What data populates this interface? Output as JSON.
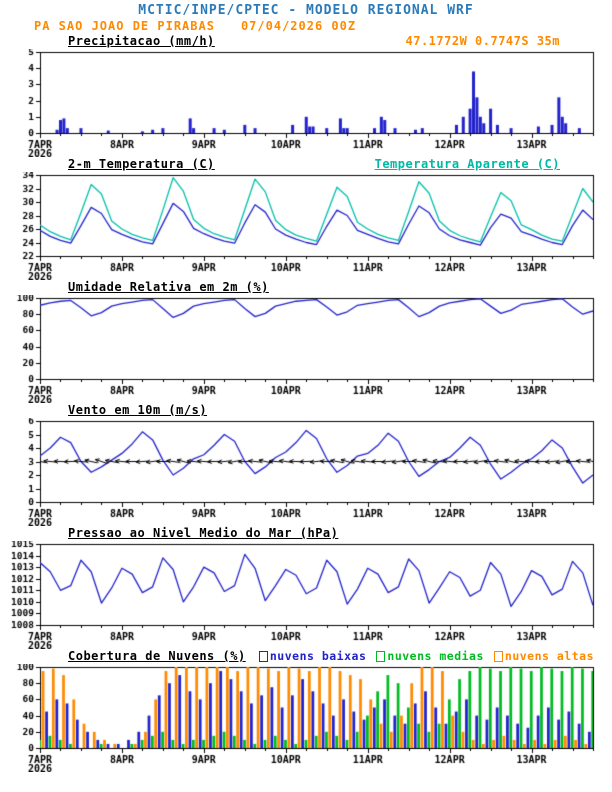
{
  "header": {
    "title": "MCTIC/INPE/CPTEC - MODELO REGIONAL WRF",
    "station": "PA SAO JOAO DE PIRABAS",
    "run": "07/04/2026 00Z"
  },
  "colors": {
    "title_blue": "#2b7bba",
    "accent_orange": "#ff8a00",
    "line_blue": "#2222cc",
    "line_cyan": "#00c0a8",
    "green": "#00bb22",
    "axis_black": "#000000"
  },
  "x_axis": {
    "hour_min": 0,
    "hour_max": 162,
    "step": 3,
    "tick_hours": [
      0,
      24,
      48,
      72,
      96,
      120,
      144
    ],
    "tick_labels": [
      "7APR",
      "8APR",
      "9APR",
      "10APR",
      "11APR",
      "12APR",
      "13APR"
    ],
    "year_label": "2026"
  },
  "chart_data": [
    {
      "type": "bar",
      "title": "Precipitacao (mm/h)",
      "right_label": "47.1772W 0.7747S 35m",
      "ylim": [
        0,
        5
      ],
      "ytick_step": 1,
      "bar_color": "#2222cc",
      "bars": [
        [
          5,
          0.2
        ],
        [
          6,
          0.8
        ],
        [
          7,
          0.9
        ],
        [
          8,
          0.3
        ],
        [
          12,
          0.3
        ],
        [
          20,
          0.15
        ],
        [
          30,
          0.1
        ],
        [
          33,
          0.2
        ],
        [
          36,
          0.3
        ],
        [
          44,
          0.9
        ],
        [
          45,
          0.3
        ],
        [
          51,
          0.3
        ],
        [
          54,
          0.2
        ],
        [
          60,
          0.5
        ],
        [
          63,
          0.3
        ],
        [
          74,
          0.5
        ],
        [
          78,
          1.0
        ],
        [
          79,
          0.4
        ],
        [
          80,
          0.4
        ],
        [
          84,
          0.3
        ],
        [
          88,
          0.9
        ],
        [
          89,
          0.3
        ],
        [
          90,
          0.3
        ],
        [
          98,
          0.3
        ],
        [
          100,
          1.0
        ],
        [
          101,
          0.8
        ],
        [
          104,
          0.3
        ],
        [
          110,
          0.2
        ],
        [
          112,
          0.3
        ],
        [
          122,
          0.5
        ],
        [
          124,
          1.0
        ],
        [
          126,
          1.5
        ],
        [
          127,
          3.8
        ],
        [
          128,
          2.2
        ],
        [
          129,
          1.0
        ],
        [
          130,
          0.6
        ],
        [
          132,
          1.5
        ],
        [
          134,
          0.5
        ],
        [
          138,
          0.3
        ],
        [
          146,
          0.4
        ],
        [
          150,
          0.5
        ],
        [
          152,
          2.2
        ],
        [
          153,
          1.0
        ],
        [
          154,
          0.6
        ],
        [
          158,
          0.3
        ]
      ]
    },
    {
      "type": "line",
      "title": "2-m Temperatura (C)",
      "right_title": "Temperatura Aparente (C)",
      "ylim": [
        22,
        34
      ],
      "ytick_step": 2,
      "series": [
        {
          "name": "2-m Temperatura (C)",
          "color": "#2222cc",
          "values": [
            25.8,
            24.9,
            24.3,
            23.9,
            26.5,
            29.2,
            28.3,
            25.9,
            25.2,
            24.6,
            24.1,
            23.8,
            26.8,
            29.8,
            28.6,
            26.1,
            25.3,
            24.7,
            24.2,
            23.9,
            26.9,
            29.6,
            28.5,
            26.0,
            25.1,
            24.5,
            24.0,
            23.7,
            26.4,
            28.8,
            28.0,
            25.8,
            25.2,
            24.6,
            24.1,
            23.8,
            26.7,
            29.4,
            28.4,
            26.0,
            25.0,
            24.4,
            24.0,
            23.6,
            26.2,
            28.2,
            27.6,
            25.6,
            25.1,
            24.5,
            24.0,
            23.7,
            26.5,
            28.8,
            27.4
          ]
        },
        {
          "name": "Temperatura Aparente (C)",
          "color": "#00c0a8",
          "values": [
            26.6,
            25.6,
            24.9,
            24.4,
            28.4,
            32.6,
            31.2,
            27.2,
            26.0,
            25.2,
            24.7,
            24.3,
            28.8,
            33.6,
            31.6,
            27.4,
            26.1,
            25.3,
            24.8,
            24.4,
            28.9,
            33.4,
            31.5,
            27.3,
            25.9,
            25.1,
            24.6,
            24.2,
            28.2,
            32.2,
            30.8,
            27.0,
            26.0,
            25.2,
            24.7,
            24.3,
            28.6,
            33.0,
            31.3,
            27.2,
            25.8,
            25.0,
            24.5,
            24.1,
            27.8,
            31.4,
            30.2,
            26.6,
            25.9,
            25.1,
            24.5,
            24.2,
            28.1,
            32.0,
            30.0
          ]
        }
      ]
    },
    {
      "type": "line",
      "title": "Umidade Relativa em 2m (%)",
      "ylim": [
        0,
        100
      ],
      "ytick_step": 20,
      "series": [
        {
          "name": "Umidade Relativa em 2m (%)",
          "color": "#2222cc",
          "values": [
            91,
            94,
            96,
            97,
            88,
            78,
            82,
            90,
            93,
            95,
            97,
            98,
            87,
            76,
            81,
            90,
            93,
            95,
            97,
            98,
            87,
            77,
            81,
            90,
            93,
            96,
            97,
            98,
            89,
            79,
            83,
            91,
            93,
            95,
            97,
            98,
            88,
            77,
            82,
            90,
            94,
            96,
            98,
            99,
            90,
            81,
            85,
            92,
            94,
            96,
            98,
            99,
            89,
            80,
            84
          ]
        }
      ]
    },
    {
      "type": "line-barbs",
      "title": "Vento em 10m (m/s)",
      "ylim": [
        0,
        6
      ],
      "ytick_step": 1,
      "barb_level": 3,
      "barb_dirs": [
        100,
        95,
        92,
        88,
        95,
        102,
        108,
        100,
        96,
        90,
        86,
        82,
        90,
        98,
        104,
        96,
        94,
        88,
        84,
        80,
        88,
        96,
        102,
        94,
        98,
        92,
        88,
        84,
        92,
        100,
        106,
        98,
        96,
        90,
        85,
        82,
        90,
        98,
        104,
        96,
        95,
        89,
        85,
        81,
        89,
        97,
        103,
        95,
        94,
        88,
        84,
        80,
        88,
        96,
        102
      ],
      "series": [
        {
          "name": "Vento em 10m (m/s)",
          "color": "#2222cc",
          "values": [
            3.4,
            4.0,
            4.8,
            4.4,
            3.0,
            2.2,
            2.6,
            3.1,
            3.6,
            4.3,
            5.2,
            4.6,
            3.1,
            2.0,
            2.5,
            3.2,
            3.5,
            4.2,
            5.0,
            4.5,
            3.0,
            2.1,
            2.6,
            3.3,
            3.7,
            4.4,
            5.3,
            4.7,
            3.2,
            2.2,
            2.7,
            3.4,
            3.6,
            4.2,
            5.1,
            4.5,
            3.0,
            1.9,
            2.4,
            3.0,
            3.3,
            4.0,
            4.8,
            4.2,
            2.8,
            1.7,
            2.2,
            2.8,
            3.2,
            3.8,
            4.6,
            4.0,
            2.6,
            1.4,
            2.0
          ]
        }
      ]
    },
    {
      "type": "line",
      "title": "Pressao ao Nivel Medio do Mar (hPa)",
      "ylim": [
        1008,
        1015
      ],
      "ytick_step": 1,
      "series": [
        {
          "name": "Pressao ao Nivel Medio do Mar (hPa)",
          "color": "#2222cc",
          "values": [
            1013.4,
            1012.6,
            1011.0,
            1011.4,
            1013.6,
            1012.6,
            1009.9,
            1011.2,
            1012.9,
            1012.4,
            1010.8,
            1011.3,
            1013.8,
            1012.8,
            1010.0,
            1011.3,
            1013.0,
            1012.5,
            1010.9,
            1011.4,
            1014.1,
            1012.9,
            1010.1,
            1011.4,
            1012.8,
            1012.3,
            1010.7,
            1011.2,
            1013.6,
            1012.6,
            1009.8,
            1011.1,
            1012.9,
            1012.4,
            1010.8,
            1011.3,
            1013.7,
            1012.7,
            1009.9,
            1011.2,
            1012.6,
            1012.1,
            1010.5,
            1011.0,
            1013.4,
            1012.4,
            1009.6,
            1010.9,
            1012.7,
            1012.2,
            1010.6,
            1011.1,
            1013.5,
            1012.5,
            1009.7
          ]
        }
      ]
    },
    {
      "type": "bars-overlay",
      "title": "Cobertura de Nuvens (%)",
      "ylim": [
        0,
        100
      ],
      "ytick_step": 20,
      "legend": [
        {
          "label": "nuvens baixas",
          "color": "#2222cc"
        },
        {
          "label": "nuvens medias",
          "color": "#00bb22"
        },
        {
          "label": "nuvens altas",
          "color": "#ff8a00"
        }
      ],
      "series": [
        {
          "name": "nuvens baixas",
          "color": "#2222cc",
          "values": [
            30,
            45,
            60,
            55,
            35,
            20,
            10,
            5,
            5,
            10,
            20,
            40,
            65,
            80,
            90,
            70,
            60,
            80,
            95,
            85,
            70,
            55,
            65,
            75,
            50,
            65,
            85,
            70,
            55,
            40,
            60,
            45,
            35,
            50,
            60,
            40,
            30,
            55,
            70,
            50,
            30,
            45,
            60,
            40,
            35,
            50,
            40,
            30,
            25,
            40,
            50,
            35,
            45,
            30,
            20
          ]
        },
        {
          "name": "nuvens medias",
          "color": "#00bb22",
          "values": [
            10,
            15,
            10,
            5,
            0,
            0,
            5,
            0,
            0,
            5,
            10,
            15,
            20,
            10,
            5,
            10,
            10,
            15,
            20,
            15,
            10,
            5,
            10,
            15,
            10,
            5,
            10,
            15,
            20,
            15,
            10,
            20,
            40,
            70,
            90,
            80,
            50,
            30,
            20,
            30,
            60,
            85,
            95,
            100,
            98,
            95,
            100,
            98,
            95,
            100,
            98,
            95,
            100,
            98,
            95
          ]
        },
        {
          "name": "nuvens altas",
          "color": "#ff8a00",
          "values": [
            95,
            98,
            90,
            60,
            30,
            20,
            10,
            5,
            0,
            5,
            20,
            60,
            95,
            100,
            100,
            100,
            100,
            100,
            100,
            95,
            100,
            100,
            98,
            95,
            100,
            98,
            95,
            100,
            100,
            95,
            90,
            85,
            60,
            30,
            20,
            40,
            80,
            100,
            100,
            95,
            40,
            20,
            10,
            5,
            10,
            15,
            10,
            5,
            10,
            5,
            10,
            15,
            10,
            5,
            10
          ]
        }
      ]
    }
  ]
}
